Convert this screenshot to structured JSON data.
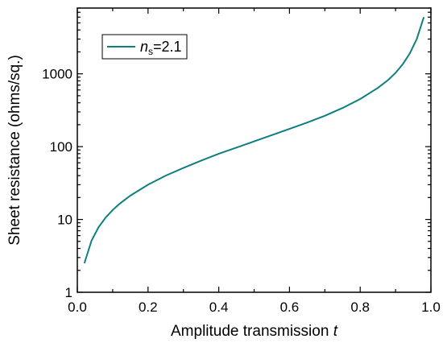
{
  "chart_data": {
    "type": "line",
    "xlabel": "Amplitude transmission",
    "xlabel_var": "t",
    "ylabel": "Sheet resistance (ohms/sq.)",
    "xlim": [
      0.0,
      1.0
    ],
    "ylim": [
      1,
      8000
    ],
    "yscale": "log",
    "x_ticks": [
      0.0,
      0.2,
      0.4,
      0.6,
      0.8,
      1.0
    ],
    "x_tick_labels": [
      "0.0",
      "0.2",
      "0.4",
      "0.6",
      "0.8",
      "1.0"
    ],
    "y_ticks": [
      1,
      10,
      100,
      1000
    ],
    "y_tick_labels": [
      "1",
      "10",
      "100",
      "1000"
    ],
    "grid": false,
    "legend_position": "top-left",
    "legend": {
      "var": "n",
      "sub": "s",
      "value": "=2.1"
    },
    "series": [
      {
        "name": "ns=2.1",
        "color": "#0e7f7f",
        "x": [
          0.02,
          0.04,
          0.06,
          0.08,
          0.1,
          0.12,
          0.15,
          0.2,
          0.25,
          0.3,
          0.35,
          0.4,
          0.45,
          0.5,
          0.55,
          0.6,
          0.65,
          0.7,
          0.75,
          0.8,
          0.85,
          0.88,
          0.9,
          0.92,
          0.94,
          0.96,
          0.98
        ],
        "values": [
          2.5,
          5.1,
          7.8,
          10.6,
          13.5,
          16.5,
          21.2,
          30,
          40,
          51,
          64,
          80,
          97,
          118,
          144,
          175,
          214,
          265,
          340,
          450,
          640,
          830,
          1030,
          1350,
          1900,
          3000,
          6000
        ]
      }
    ]
  }
}
